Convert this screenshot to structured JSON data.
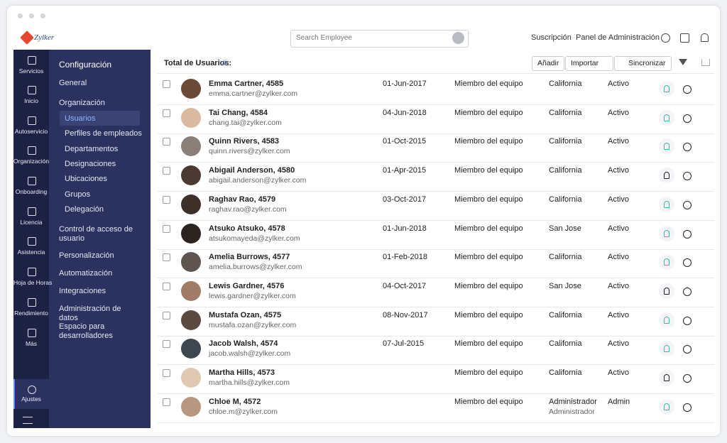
{
  "header": {
    "logo": "Zylker",
    "search_placeholder": "Search Employee",
    "links": [
      "Suscripción",
      "Panel de Administración"
    ]
  },
  "nav": {
    "items": [
      "Servicios",
      "Inicio",
      "Autoservicio",
      "Organización",
      "Onboarding",
      "Licencia",
      "Asistencia",
      "Hoja de Horas",
      "Rendimiento",
      "Más"
    ],
    "settings": "Ajustes"
  },
  "submenu": {
    "title": "Configuración",
    "general": "General",
    "organization": "Organización",
    "org_children": [
      "Usuarios",
      "Perfiles de empleados",
      "Departamentos",
      "Designaciones",
      "Ubicaciones",
      "Grupos",
      "Delegación"
    ],
    "sections": [
      "Control de acceso de usuario",
      "Personalización",
      "Automatización",
      "Integraciones",
      "Administración de datos",
      "Espacio para desarrolladores"
    ]
  },
  "toolbar": {
    "total_label": "Total de Usuarios:",
    "total_value": "#",
    "buttons": [
      "Añadir",
      "Importar",
      "Sincronizar"
    ]
  },
  "table": {
    "rows": [
      {
        "name": "Emma Cartner, 4585",
        "email": "emma.cartner@zylker.com",
        "date": "01-Jun-2017",
        "role": "Miembro del equipo",
        "location": "California",
        "status": "Activo"
      },
      {
        "name": "Tai Chang, 4584",
        "email": "chang.tai@zylker.com",
        "date": "04-Jun-2018",
        "role": "Miembro del equipo",
        "location": "California",
        "status": "Activo"
      },
      {
        "name": "Quinn Rivers, 4583",
        "email": "quinn.rivers@zylker.com",
        "date": "01-Oct-2015",
        "role": "Miembro del equipo",
        "location": "California",
        "status": "Activo"
      },
      {
        "name": "Abigail Anderson, 4580",
        "email": "abigail.anderson@zylker.com",
        "date": "01-Apr-2015",
        "role": "Miembro del equipo",
        "location": "California",
        "status": "Activo"
      },
      {
        "name": "Raghav Rao, 4579",
        "email": "raghav.rao@zylker.com",
        "date": "03-Oct-2017",
        "role": "Miembro del equipo",
        "location": "California",
        "status": "Activo"
      },
      {
        "name": "Atsuko Atsuko, 4578",
        "email": "atsukomayeda@zylker.com",
        "date": "01-Jun-2018",
        "role": "Miembro del equipo",
        "location": "San Jose",
        "status": "Activo"
      },
      {
        "name": "Amelia Burrows, 4577",
        "email": "amelia.burrows@zylker.com",
        "date": "01-Feb-2018",
        "role": "Miembro del equipo",
        "location": "California",
        "status": "Activo"
      },
      {
        "name": "Lewis Gardner, 4576",
        "email": "lewis.gardner@zylker.com",
        "date": "04-Oct-2017",
        "role": "Miembro del equipo",
        "location": "San Jose",
        "status": "Activo"
      },
      {
        "name": "Mustafa Ozan, 4575",
        "email": "mustafa.ozan@zylker.com",
        "date": "08-Nov-2017",
        "role": "Miembro del equipo",
        "location": "California",
        "status": "Activo"
      },
      {
        "name": "Jacob Walsh, 4574",
        "email": "jacob.walsh@zylker.com",
        "date": "07-Jul-2015",
        "role": "Miembro del equipo",
        "location": "California",
        "status": "Activo"
      },
      {
        "name": "Martha Hills, 4573",
        "email": "martha.hills@zylker.com",
        "role": "Miembro del equipo",
        "location": "California",
        "status": "Activo"
      },
      {
        "name": "Chloe M, 4572",
        "email": "chloe.m@zylker.com",
        "role": "Miembro del equipo",
        "location": "Administrador",
        "location_sub": "Administrador",
        "status": "Admin"
      }
    ]
  }
}
